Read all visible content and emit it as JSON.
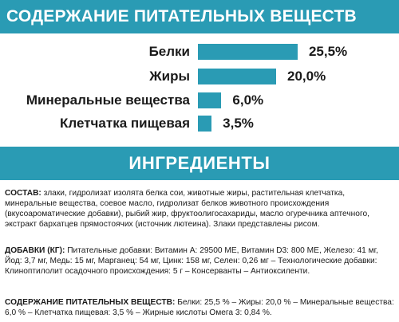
{
  "header": {
    "nutrients_title": "СОДЕРЖАНИЕ ПИТАТЕЛЬНЫХ ВЕЩЕСТВ",
    "ingredients_title": "ИНГРЕДИЕНТЫ"
  },
  "nutrients": [
    {
      "label": "Белки",
      "value_text": "25,5%",
      "value": 25.5
    },
    {
      "label": "Жиры",
      "value_text": "20,0%",
      "value": 20.0
    },
    {
      "label": "Минеральные вещества",
      "value_text": "6,0%",
      "value": 6.0
    },
    {
      "label": "Клетчатка пищевая",
      "value_text": "3,5%",
      "value": 3.5
    }
  ],
  "composition": {
    "label": "СОСТАВ:",
    "text": " злаки, гидролизат изолята белка сои, животные жиры, растительная клетчатка, минеральные вещества, соевое масло, гидролизат белков животного происхождения (вкусоароматические добавки), рыбий жир, фруктоолигосахариды, масло огуречника аптечного, экстракт бархатцев прямостоячих (источник лютеина). Злаки представлены рисом."
  },
  "additives": {
    "label": "ДОБАВКИ (КГ):",
    "text": " Питательные добавки: Витамин А: 29500 МЕ, Витамин D3: 800 МЕ, Железо: 41 мг, Йод: 3,7 мг, Медь: 15 мг, Марганец: 54 мг, Цинк: 158 мг, Селен: 0,26 мг – Технологические добавки: Клиноптилолит осадочного происхождения: 5 г – Консерванты – Антиоксиленти."
  },
  "nutrient_content": {
    "label": "СОДЕРЖАНИЕ ПИТАТЕЛЬНЫХ ВЕЩЕСТВ:",
    "text": " Белки: 25,5 % – Жиры: 20,0 % – Минеральные вещества: 6,0 % – Клетчатка пищевая: 3,5 % – Жирные кислоты Омега 3: 0,84 %."
  },
  "colors": {
    "accent": "#2a9bb4",
    "text": "#1a1a1a",
    "banner_text": "#ffffff"
  }
}
